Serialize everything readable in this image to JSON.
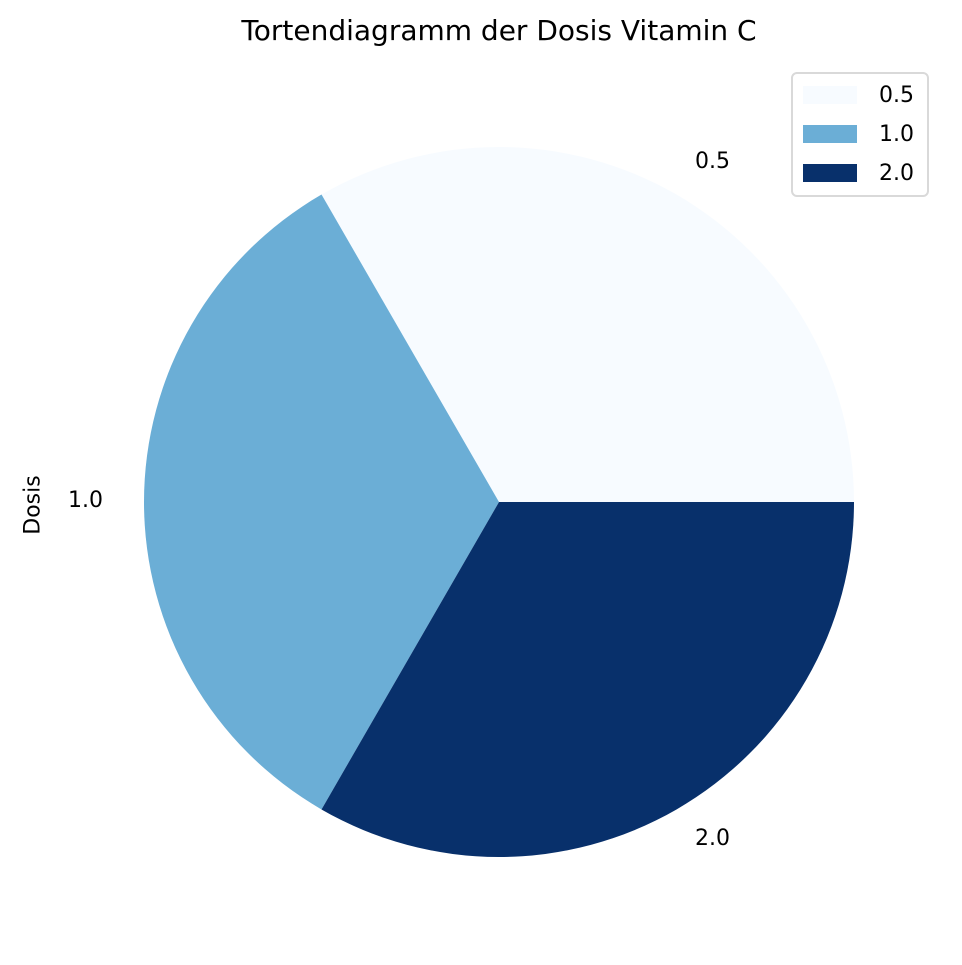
{
  "chart_data": {
    "type": "pie",
    "title": "Tortendiagramm der Dosis Vitamin C",
    "ylabel": "Dosis",
    "categories": [
      "0.5",
      "1.0",
      "2.0"
    ],
    "values": [
      1,
      1,
      1
    ],
    "percentages": [
      33.33,
      33.33,
      33.33
    ],
    "colors": [
      "#f7fbff",
      "#6baed6",
      "#08306b"
    ],
    "start_angle_deg": 0,
    "direction": "counterclockwise",
    "legend": {
      "position": "upper right",
      "entries": [
        "0.5",
        "1.0",
        "2.0"
      ]
    },
    "slice_labels": [
      "0.5",
      "1.0",
      "2.0"
    ]
  },
  "title": "Tortendiagramm der Dosis Vitamin C",
  "ylabel": "Dosis",
  "labels": {
    "a": "0.5",
    "b": "1.0",
    "c": "2.0"
  },
  "legend": [
    {
      "label": "0.5",
      "color": "#f7fbff"
    },
    {
      "label": "1.0",
      "color": "#6baed6"
    },
    {
      "label": "2.0",
      "color": "#08306b"
    }
  ]
}
